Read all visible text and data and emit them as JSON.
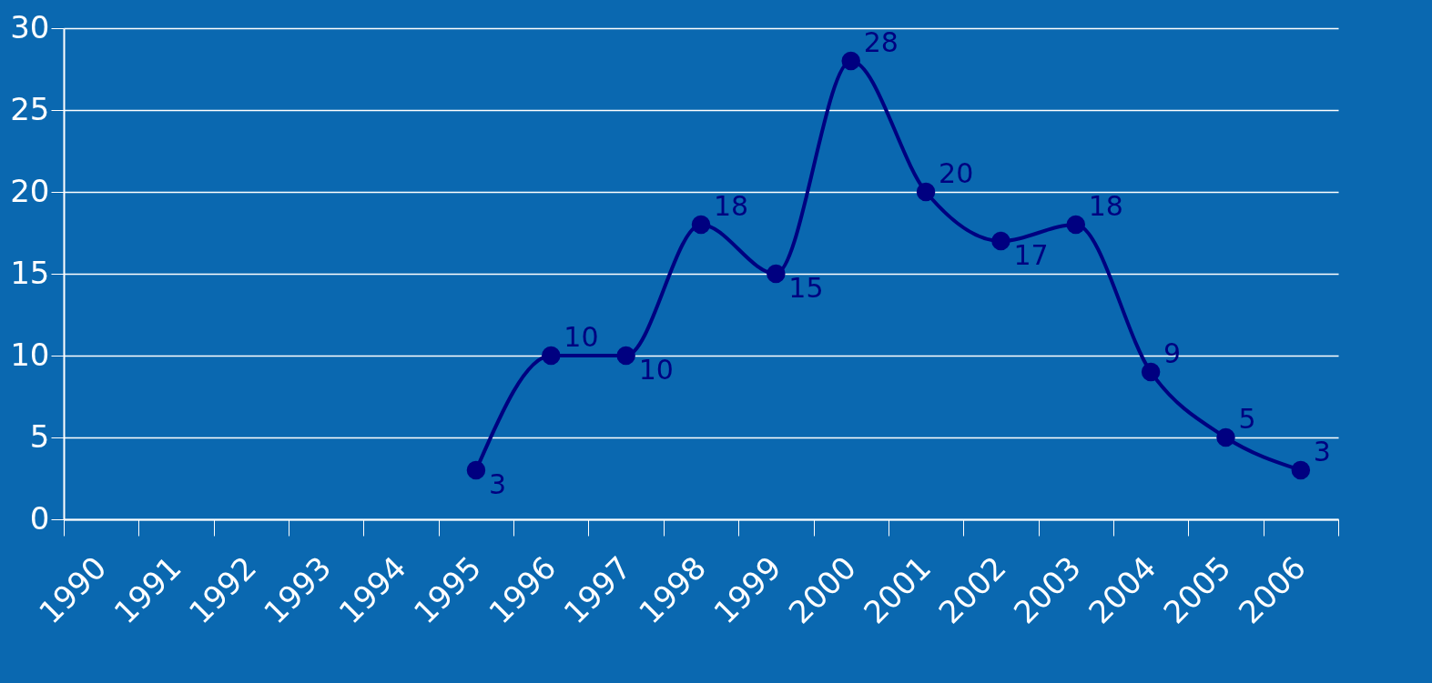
{
  "chart_data": {
    "type": "line",
    "categories": [
      "1990",
      "1991",
      "1992",
      "1993",
      "1994",
      "1995",
      "1996",
      "1997",
      "1998",
      "1999",
      "2000",
      "2001",
      "2002",
      "2003",
      "2004",
      "2005",
      "2006"
    ],
    "series": [
      {
        "color": "#000080",
        "values": [
          null,
          null,
          null,
          null,
          null,
          3,
          10,
          10,
          18,
          15,
          28,
          20,
          17,
          18,
          9,
          5,
          3
        ]
      }
    ],
    "ylim": [
      0,
      30
    ],
    "yticks": [
      0,
      5,
      10,
      15,
      20,
      25,
      30
    ],
    "grid": "y",
    "marker": "circle",
    "line_style": "solid",
    "data_labels": true
  }
}
